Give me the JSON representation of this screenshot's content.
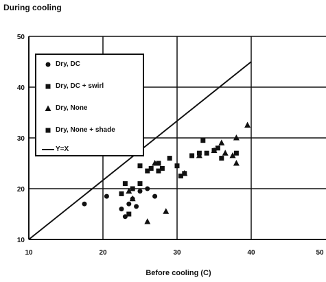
{
  "chart_data": {
    "type": "scatter",
    "title": "",
    "ylabel": "During cooling",
    "xlabel": "Before cooling (C)",
    "xlim": [
      10,
      40
    ],
    "ylim": [
      10,
      50
    ],
    "xticks": [
      "10",
      "20",
      "30",
      "40",
      "50"
    ],
    "yticks": [
      "10",
      "20",
      "30",
      "40",
      "50"
    ],
    "grid": true,
    "legend_position": "top-left",
    "legend": [
      {
        "symbol": "circle",
        "label": "Dry, DC"
      },
      {
        "symbol": "square",
        "label": "Dry, DC + swirl"
      },
      {
        "symbol": "triangle",
        "label": "Dry, None"
      },
      {
        "symbol": "square",
        "label": "Dry, None + shade"
      },
      {
        "symbol": "line",
        "label": "Y=X"
      }
    ],
    "series": [
      {
        "name": "Dry, DC",
        "marker": "circle",
        "points": [
          [
            17.5,
            17.0
          ],
          [
            20.5,
            18.5
          ],
          [
            22.5,
            16.0
          ],
          [
            23.0,
            14.5
          ],
          [
            23.5,
            17.0
          ],
          [
            24.0,
            18.0
          ],
          [
            24.5,
            16.5
          ],
          [
            25.0,
            19.5
          ],
          [
            26.0,
            20.0
          ],
          [
            27.0,
            18.5
          ]
        ]
      },
      {
        "name": "Dry, DC + swirl",
        "marker": "square",
        "points": [
          [
            23.0,
            21.0
          ],
          [
            24.0,
            20.0
          ],
          [
            25.0,
            24.5
          ],
          [
            26.0,
            23.5
          ],
          [
            27.5,
            25.0
          ],
          [
            28.0,
            24.0
          ],
          [
            29.0,
            26.0
          ],
          [
            30.0,
            24.5
          ],
          [
            31.0,
            23.0
          ],
          [
            32.0,
            26.5
          ],
          [
            33.5,
            29.5
          ],
          [
            34.0,
            27.0
          ],
          [
            35.0,
            27.5
          ],
          [
            36.0,
            26.0
          ],
          [
            38.0,
            27.0
          ]
        ]
      },
      {
        "name": "Dry, None",
        "marker": "triangle",
        "points": [
          [
            23.5,
            19.5
          ],
          [
            24.0,
            18.0
          ],
          [
            26.0,
            13.5
          ],
          [
            28.5,
            15.5
          ],
          [
            33.0,
            26.5
          ],
          [
            35.0,
            27.5
          ],
          [
            36.0,
            29.0
          ],
          [
            36.5,
            27.0
          ],
          [
            37.5,
            26.5
          ],
          [
            38.0,
            25.0
          ],
          [
            38.0,
            30.0
          ],
          [
            39.5,
            32.5
          ],
          [
            31.0,
            23.0
          ],
          [
            27.0,
            25.0
          ]
        ]
      },
      {
        "name": "Dry, None + shade",
        "marker": "square",
        "points": [
          [
            22.5,
            19.0
          ],
          [
            23.5,
            15.0
          ],
          [
            25.0,
            21.0
          ],
          [
            26.5,
            24.0
          ],
          [
            27.5,
            23.5
          ],
          [
            30.5,
            22.5
          ],
          [
            33.0,
            27.0
          ],
          [
            35.5,
            28.0
          ]
        ]
      },
      {
        "name": "Y=X",
        "marker": "line",
        "points": [
          [
            10,
            10
          ],
          [
            40,
            45
          ]
        ]
      }
    ]
  }
}
